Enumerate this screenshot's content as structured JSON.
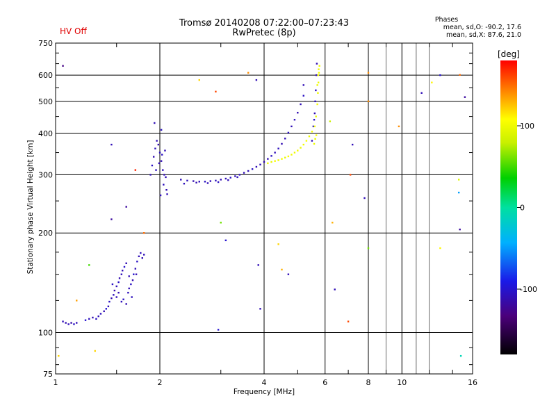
{
  "header": {
    "title_line1": "Tromsø 20140208 07:22:00–07:23:43",
    "title_line2": "RwPretec (8p)",
    "status": "HV Off",
    "phases_title": "Phases",
    "phases_line1": "mean, sd,O: -90.2, 17.6",
    "phases_line2": "mean, sd,X:  87.6, 21.0"
  },
  "colorbar": {
    "unit": "[deg]",
    "ticks": [
      {
        "value": 100,
        "label": "100"
      },
      {
        "value": 0,
        "label": "0"
      },
      {
        "value": -100,
        "label": "-100"
      }
    ],
    "range": [
      -180,
      180
    ]
  },
  "chart_data": {
    "type": "scatter",
    "xlabel": "Frequency [MHz]",
    "ylabel": "Stationary phase Virtual Height [km]",
    "xscale": "log",
    "yscale": "log",
    "xlim": [
      1,
      16
    ],
    "ylim": [
      75,
      750
    ],
    "grid": true,
    "xticks": [
      {
        "v": 1,
        "label": "1",
        "major": true
      },
      {
        "v": 2,
        "label": "2",
        "major": true
      },
      {
        "v": 4,
        "label": "4",
        "major": true
      },
      {
        "v": 6,
        "label": "6",
        "major": false
      },
      {
        "v": 8,
        "label": "8",
        "major": true
      },
      {
        "v": 10,
        "label": "10",
        "major": true
      },
      {
        "v": 16,
        "label": "16",
        "major": false
      }
    ],
    "yticks": [
      {
        "v": 75,
        "label": "75"
      },
      {
        "v": 100,
        "label": "100"
      },
      {
        "v": 200,
        "label": "200"
      },
      {
        "v": 300,
        "label": "300"
      },
      {
        "v": 400,
        "label": "400"
      },
      {
        "v": 500,
        "label": "500"
      },
      {
        "v": 600,
        "label": "600"
      },
      {
        "v": 750,
        "label": "750"
      }
    ],
    "o_trace_color": "#1a3fe0",
    "x_trace_color": "#e3e300",
    "points": [
      [
        1.05,
        108,
        -110
      ],
      [
        1.07,
        107,
        -112
      ],
      [
        1.09,
        106,
        -108
      ],
      [
        1.11,
        107,
        -115
      ],
      [
        1.13,
        106,
        -105
      ],
      [
        1.15,
        107,
        -110
      ],
      [
        1.22,
        109,
        -100
      ],
      [
        1.25,
        110,
        -108
      ],
      [
        1.28,
        111,
        -112
      ],
      [
        1.31,
        110,
        -105
      ],
      [
        1.33,
        112,
        -110
      ],
      [
        1.35,
        114,
        -108
      ],
      [
        1.38,
        116,
        -112
      ],
      [
        1.4,
        118,
        -100
      ],
      [
        1.42,
        120,
        -110
      ],
      [
        1.43,
        124,
        -105
      ],
      [
        1.45,
        127,
        -112
      ],
      [
        1.47,
        130,
        -108
      ],
      [
        1.48,
        134,
        -115
      ],
      [
        1.5,
        138,
        -110
      ],
      [
        1.52,
        142,
        -105
      ],
      [
        1.53,
        146,
        -112
      ],
      [
        1.55,
        150,
        -108
      ],
      [
        1.56,
        154,
        -110
      ],
      [
        1.58,
        158,
        -102
      ],
      [
        1.6,
        162,
        -112
      ],
      [
        1.62,
        132,
        -108
      ],
      [
        1.63,
        136,
        -110
      ],
      [
        1.65,
        140,
        -105
      ],
      [
        1.67,
        144,
        -112
      ],
      [
        1.68,
        150,
        -100
      ],
      [
        1.7,
        156,
        -110
      ],
      [
        1.72,
        164,
        -105
      ],
      [
        1.74,
        170,
        -110
      ],
      [
        1.76,
        174,
        -108
      ],
      [
        1.78,
        168,
        -112
      ],
      [
        1.5,
        128,
        -110
      ],
      [
        1.55,
        124,
        -108
      ],
      [
        1.6,
        122,
        -112
      ],
      [
        1.46,
        140,
        -105
      ],
      [
        1.52,
        132,
        -110
      ],
      [
        1.66,
        128,
        -108
      ],
      [
        1.71,
        150,
        -112
      ],
      [
        1.8,
        172,
        -110
      ],
      [
        1.57,
        126,
        -105
      ],
      [
        1.63,
        148,
        -110
      ],
      [
        1.88,
        300,
        -110
      ],
      [
        1.9,
        320,
        -105
      ],
      [
        1.92,
        340,
        -112
      ],
      [
        1.94,
        360,
        -108
      ],
      [
        1.96,
        380,
        -110
      ],
      [
        1.98,
        370,
        -115
      ],
      [
        2.0,
        350,
        -105
      ],
      [
        2.02,
        330,
        -110
      ],
      [
        2.04,
        310,
        -108
      ],
      [
        2.06,
        300,
        -112
      ],
      [
        2.08,
        295,
        -110
      ],
      [
        1.95,
        310,
        -108
      ],
      [
        1.99,
        325,
        -112
      ],
      [
        2.03,
        345,
        -105
      ],
      [
        2.07,
        355,
        -110
      ],
      [
        2.05,
        280,
        -108
      ],
      [
        2.09,
        270,
        -112
      ],
      [
        2.1,
        262,
        -110
      ],
      [
        2.02,
        410,
        -105
      ],
      [
        1.93,
        430,
        -110
      ],
      [
        2.01,
        260,
        -108
      ],
      [
        2.3,
        290,
        -110
      ],
      [
        2.4,
        288,
        -108
      ],
      [
        2.5,
        287,
        -112
      ],
      [
        2.6,
        286,
        -110
      ],
      [
        2.7,
        286,
        -105
      ],
      [
        2.8,
        287,
        -110
      ],
      [
        2.9,
        288,
        -108
      ],
      [
        3.0,
        290,
        -112
      ],
      [
        3.1,
        292,
        -110
      ],
      [
        3.2,
        294,
        -105
      ],
      [
        3.3,
        297,
        -110
      ],
      [
        3.4,
        300,
        -108
      ],
      [
        3.5,
        304,
        -112
      ],
      [
        3.6,
        308,
        -110
      ],
      [
        3.7,
        312,
        -105
      ],
      [
        3.8,
        317,
        -110
      ],
      [
        3.9,
        322,
        -108
      ],
      [
        4.0,
        328,
        -112
      ],
      [
        4.1,
        335,
        -110
      ],
      [
        4.2,
        342,
        -105
      ],
      [
        4.3,
        350,
        -110
      ],
      [
        4.4,
        360,
        -108
      ],
      [
        4.5,
        372,
        -112
      ],
      [
        4.6,
        386,
        -110
      ],
      [
        4.7,
        402,
        -105
      ],
      [
        4.8,
        420,
        -110
      ],
      [
        4.9,
        440,
        -108
      ],
      [
        5.0,
        462,
        -112
      ],
      [
        5.1,
        490,
        -110
      ],
      [
        5.2,
        520,
        -105
      ],
      [
        2.35,
        282,
        -108
      ],
      [
        2.55,
        284,
        -112
      ],
      [
        2.75,
        283,
        -110
      ],
      [
        2.95,
        285,
        -105
      ],
      [
        3.15,
        289,
        -110
      ],
      [
        3.35,
        295,
        -108
      ],
      [
        5.5,
        380,
        -110
      ],
      [
        5.55,
        420,
        -105
      ],
      [
        5.6,
        460,
        -112
      ],
      [
        5.62,
        500,
        -110
      ],
      [
        5.64,
        540,
        -108
      ],
      [
        5.66,
        600,
        -110
      ],
      [
        5.68,
        650,
        -112
      ],
      [
        5.58,
        440,
        -105
      ],
      [
        4.1,
        325,
        100
      ],
      [
        4.2,
        328,
        95
      ],
      [
        4.3,
        330,
        105
      ],
      [
        4.4,
        332,
        98
      ],
      [
        4.5,
        335,
        102
      ],
      [
        4.6,
        338,
        96
      ],
      [
        4.7,
        341,
        104
      ],
      [
        4.8,
        345,
        100
      ],
      [
        4.9,
        350,
        98
      ],
      [
        5.0,
        355,
        102
      ],
      [
        5.1,
        362,
        96
      ],
      [
        5.2,
        370,
        100
      ],
      [
        5.3,
        380,
        104
      ],
      [
        5.4,
        392,
        98
      ],
      [
        5.5,
        405,
        102
      ],
      [
        5.6,
        420,
        100
      ],
      [
        5.65,
        450,
        96
      ],
      [
        5.7,
        490,
        104
      ],
      [
        5.72,
        530,
        100
      ],
      [
        5.74,
        570,
        98
      ],
      [
        5.76,
        610,
        102
      ],
      [
        5.78,
        640,
        100
      ],
      [
        5.62,
        385,
        96
      ],
      [
        5.66,
        395,
        104
      ],
      [
        5.7,
        560,
        98
      ],
      [
        5.73,
        600,
        102
      ],
      [
        5.75,
        625,
        100
      ],
      [
        5.58,
        372,
        98
      ],
      [
        1.02,
        85,
        120
      ],
      [
        1.05,
        640,
        -130
      ],
      [
        1.15,
        125,
        135
      ],
      [
        1.25,
        160,
        50
      ],
      [
        1.3,
        88,
        120
      ],
      [
        1.45,
        370,
        -110
      ],
      [
        1.45,
        220,
        -120
      ],
      [
        1.6,
        240,
        -120
      ],
      [
        1.7,
        310,
        170
      ],
      [
        1.8,
        200,
        150
      ],
      [
        2.6,
        580,
        120
      ],
      [
        2.9,
        535,
        160
      ],
      [
        2.95,
        102,
        -100
      ],
      [
        3.0,
        215,
        60
      ],
      [
        3.1,
        190,
        -100
      ],
      [
        3.6,
        610,
        140
      ],
      [
        3.8,
        580,
        -110
      ],
      [
        3.85,
        160,
        -110
      ],
      [
        3.9,
        118,
        -110
      ],
      [
        4.4,
        185,
        120
      ],
      [
        4.5,
        155,
        130
      ],
      [
        4.7,
        150,
        -110
      ],
      [
        5.2,
        560,
        -110
      ],
      [
        6.2,
        435,
        80
      ],
      [
        6.3,
        215,
        130
      ],
      [
        6.4,
        135,
        -110
      ],
      [
        7.0,
        108,
        160
      ],
      [
        7.1,
        300,
        160
      ],
      [
        7.2,
        370,
        -110
      ],
      [
        7.8,
        255,
        -110
      ],
      [
        8.0,
        180,
        60
      ],
      [
        8.0,
        610,
        140
      ],
      [
        8.0,
        500,
        140
      ],
      [
        9.8,
        420,
        140
      ],
      [
        11.4,
        530,
        -110
      ],
      [
        12.2,
        570,
        110
      ],
      [
        12.9,
        180,
        110
      ],
      [
        12.9,
        600,
        -100
      ],
      [
        14.6,
        290,
        90
      ],
      [
        14.6,
        265,
        -50
      ],
      [
        14.7,
        205,
        -120
      ],
      [
        14.8,
        85,
        -10
      ],
      [
        15.2,
        515,
        -120
      ],
      [
        14.7,
        601,
        150
      ]
    ]
  }
}
